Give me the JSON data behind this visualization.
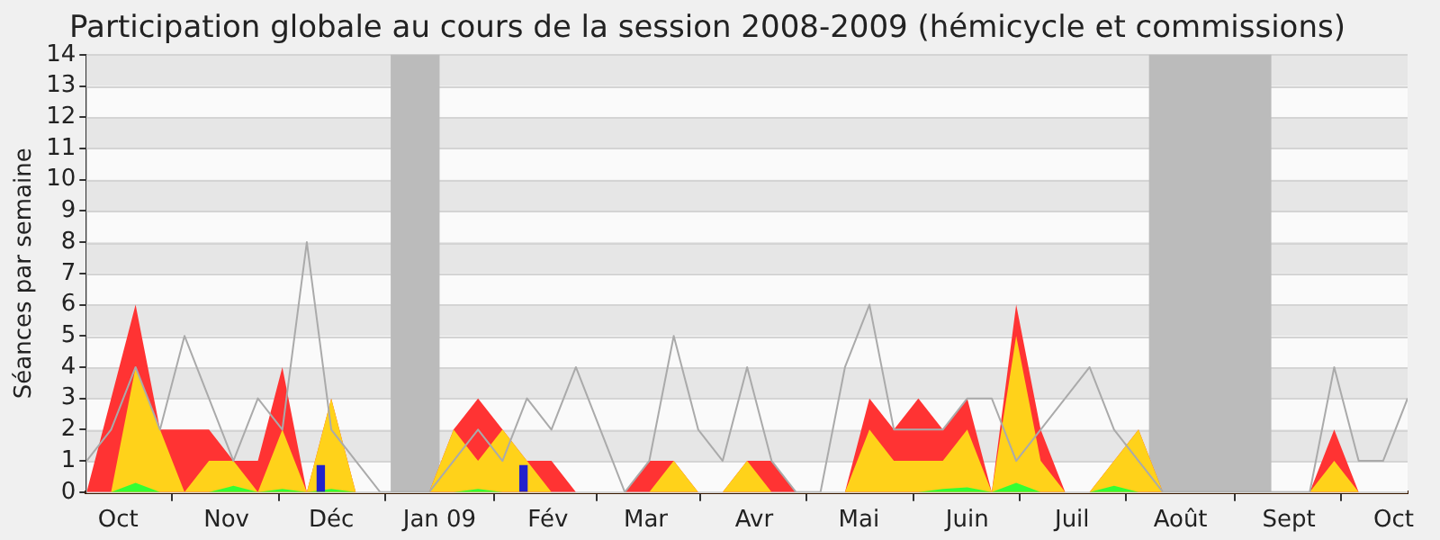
{
  "chart_data": {
    "type": "area",
    "title": "Participation globale au cours de la session 2008-2009 (hémicycle et commissions)",
    "ylabel": "Séances par semaine",
    "x": [
      "2008-09-22",
      "2008-09-29",
      "2008-10-06",
      "2008-10-13",
      "2008-10-20",
      "2008-10-27",
      "2008-11-03",
      "2008-11-10",
      "2008-11-17",
      "2008-11-24",
      "2008-12-01",
      "2008-12-08",
      "2008-12-15",
      "2008-12-22",
      "2008-12-29",
      "2009-01-05",
      "2009-01-12",
      "2009-01-19",
      "2009-01-26",
      "2009-02-02",
      "2009-02-09",
      "2009-02-16",
      "2009-02-23",
      "2009-03-02",
      "2009-03-09",
      "2009-03-16",
      "2009-03-23",
      "2009-03-30",
      "2009-04-06",
      "2009-04-13",
      "2009-04-20",
      "2009-04-27",
      "2009-05-04",
      "2009-05-11",
      "2009-05-18",
      "2009-05-25",
      "2009-06-01",
      "2009-06-08",
      "2009-06-15",
      "2009-06-22",
      "2009-06-29",
      "2009-07-06",
      "2009-07-13",
      "2009-07-20",
      "2009-07-27",
      "2009-08-03",
      "2009-08-10",
      "2009-08-17",
      "2009-08-24",
      "2009-08-31",
      "2009-09-07",
      "2009-09-14",
      "2009-09-21",
      "2009-09-28",
      "2009-10-05"
    ],
    "xlim": [
      "2008-09-22",
      "2009-10-05"
    ],
    "xticks": [
      {
        "value": "2008-10-01",
        "label": "Oct"
      },
      {
        "value": "2008-11-01",
        "label": "Nov"
      },
      {
        "value": "2008-12-01",
        "label": "Déc"
      },
      {
        "value": "2009-01-01",
        "label": "Jan 09"
      },
      {
        "value": "2009-02-01",
        "label": "Fév"
      },
      {
        "value": "2009-03-01",
        "label": "Mar"
      },
      {
        "value": "2009-04-01",
        "label": "Avr"
      },
      {
        "value": "2009-05-01",
        "label": "Mai"
      },
      {
        "value": "2009-06-01",
        "label": "Juin"
      },
      {
        "value": "2009-07-01",
        "label": "Juil"
      },
      {
        "value": "2009-08-01",
        "label": "Août"
      },
      {
        "value": "2009-09-01",
        "label": "Sept"
      },
      {
        "value": "2009-10-01",
        "label": "Oct"
      }
    ],
    "ylim": [
      0,
      14
    ],
    "yticks": [
      0,
      1,
      2,
      3,
      4,
      5,
      6,
      7,
      8,
      9,
      10,
      11,
      12,
      13,
      14
    ],
    "grid": true,
    "legend": false,
    "bands": [
      {
        "axis": "x",
        "from": "2008-12-18",
        "to": "2009-01-01",
        "color": "#bbbbbb"
      },
      {
        "axis": "x",
        "from": "2009-07-23",
        "to": "2009-08-27",
        "color": "#bbbbbb"
      }
    ],
    "series": [
      {
        "color": "#ff3333",
        "values": [
          0,
          3,
          6,
          2,
          2,
          2,
          1,
          1,
          4,
          0,
          3,
          0,
          0,
          0,
          0,
          2,
          3,
          2,
          1,
          1,
          0,
          0,
          0,
          1,
          1,
          0,
          0,
          1,
          1,
          0,
          0,
          0,
          3,
          2,
          3,
          2,
          3,
          0,
          6,
          2,
          0,
          0,
          1,
          2,
          0,
          0,
          0,
          0,
          0,
          0,
          0,
          2,
          0,
          0,
          0
        ]
      },
      {
        "color": "#ffd21a",
        "values": [
          0,
          0,
          4,
          2,
          0,
          1,
          1,
          0,
          2,
          0,
          3,
          0,
          0,
          0,
          0,
          2,
          1,
          2,
          1,
          0,
          0,
          0,
          0,
          0,
          1,
          0,
          0,
          1,
          0,
          0,
          0,
          0,
          2,
          1,
          1,
          1,
          2,
          0,
          5,
          1,
          0,
          0,
          1,
          2,
          0,
          0,
          0,
          0,
          0,
          0,
          0,
          1,
          0,
          0,
          0
        ]
      },
      {
        "color": "#33ff33",
        "values": [
          0,
          0,
          0.3,
          0,
          0,
          0,
          0.2,
          0,
          0.1,
          0,
          0.1,
          0,
          0,
          0,
          0,
          0,
          0.1,
          0,
          0,
          0,
          0,
          0,
          0,
          0,
          0,
          0,
          0,
          0,
          0,
          0,
          0,
          0,
          0,
          0,
          0,
          0.1,
          0.15,
          0,
          0.3,
          0,
          0,
          0,
          0.2,
          0,
          0,
          0,
          0,
          0,
          0,
          0,
          0,
          0,
          0,
          0,
          0
        ]
      },
      {
        "type": "bar",
        "color": "#2222cc",
        "x": [
          "2008-11-28",
          "2009-01-25"
        ],
        "values": [
          0.85,
          0.85
        ]
      },
      {
        "type": "line",
        "color": "#aaaaaa",
        "values": [
          1,
          2,
          4,
          2,
          5,
          3,
          1,
          3,
          2,
          8,
          2,
          1,
          0,
          0,
          0,
          1,
          2,
          1,
          3,
          2,
          4,
          2,
          0,
          1,
          5,
          2,
          1,
          4,
          1,
          0,
          0,
          4,
          6,
          2,
          2,
          2,
          3,
          3,
          1,
          2,
          3,
          4,
          2,
          1,
          0,
          0,
          0,
          0,
          0,
          0,
          0,
          4,
          1,
          1,
          3
        ]
      }
    ]
  }
}
